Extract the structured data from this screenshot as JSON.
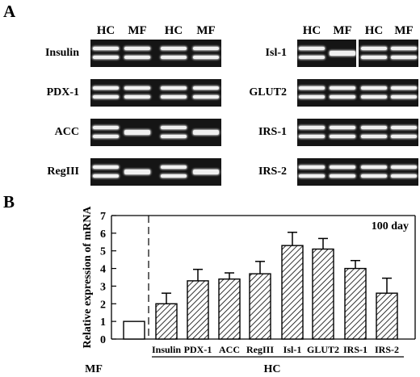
{
  "panel_a": {
    "letter": "A",
    "left_lane_labels": [
      "HC",
      "MF",
      "HC",
      "MF"
    ],
    "right_lane_labels": [
      "HC",
      "MF",
      "HC",
      "MF"
    ],
    "left_gels": [
      {
        "gene": "Insulin",
        "bands": [
          2,
          2,
          2,
          2
        ]
      },
      {
        "gene": "PDX-1",
        "bands": [
          2,
          2,
          2,
          2
        ]
      },
      {
        "gene": "ACC",
        "bands": [
          2,
          1,
          2,
          1
        ]
      },
      {
        "gene": "RegIII",
        "bands": [
          2,
          1,
          2,
          1
        ]
      }
    ],
    "right_gels": [
      {
        "gene": "Isl-1",
        "bands": [
          2,
          1,
          2,
          2
        ],
        "split": true
      },
      {
        "gene": "GLUT2",
        "bands": [
          2,
          2,
          2,
          2
        ]
      },
      {
        "gene": "IRS-1",
        "bands": [
          2,
          2,
          2,
          2
        ]
      },
      {
        "gene": "IRS-2",
        "bands": [
          2,
          2,
          2,
          2
        ]
      }
    ]
  },
  "panel_b": {
    "letter": "B",
    "annotation": "100 day",
    "group_labels": {
      "mf": "MF",
      "hc": "HC"
    }
  },
  "chart_data": {
    "type": "bar",
    "ylabel": "Relative expression of mRNA",
    "ylim": [
      0,
      7
    ],
    "yticks": [
      0,
      1,
      2,
      3,
      4,
      5,
      6,
      7
    ],
    "categories": [
      "MF",
      "Insulin",
      "PDX-1",
      "ACC",
      "RegIII",
      "Isl-1",
      "GLUT2",
      "IRS-1",
      "IRS-2"
    ],
    "category_labels": [
      "",
      "Insulin",
      "PDX-1",
      "ACC",
      "RegIII",
      "Isl-1",
      "GLUT2",
      "IRS-1",
      "IRS-2"
    ],
    "values": [
      1.0,
      2.0,
      3.3,
      3.4,
      3.7,
      5.3,
      5.1,
      4.0,
      2.6
    ],
    "errors": [
      0,
      0.6,
      0.65,
      0.35,
      0.7,
      0.75,
      0.6,
      0.45,
      0.85
    ],
    "fill": [
      "open",
      "hatched",
      "hatched",
      "hatched",
      "hatched",
      "hatched",
      "hatched",
      "hatched",
      "hatched"
    ],
    "grid": false,
    "colors": {
      "bar_stroke": "#000000",
      "open_fill": "#ffffff"
    }
  }
}
